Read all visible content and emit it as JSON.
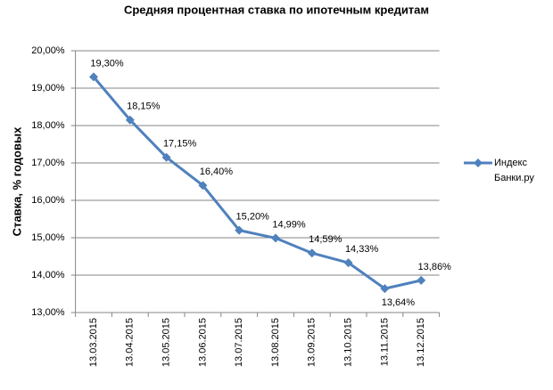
{
  "chart_data": {
    "type": "line",
    "title": "Средняя процентная ставка по ипотечным кредитам",
    "y_label": "Ставка, % годовых",
    "categories": [
      "13.03.2015",
      "13.04.2015",
      "13.05.2015",
      "13.06.2015",
      "13.07.2015",
      "13.08.2015",
      "13.09.2015",
      "13.10.2015",
      "13.11.2015",
      "13.12.2015"
    ],
    "series": [
      {
        "name": "Индекс Банки.ру",
        "color": "#4f81bd",
        "values": [
          19.3,
          18.15,
          17.15,
          16.4,
          15.2,
          14.99,
          14.59,
          14.33,
          13.64,
          13.86
        ],
        "value_labels": [
          "19,30%",
          "18,15%",
          "17,15%",
          "16,40%",
          "15,20%",
          "14,99%",
          "14,59%",
          "14,33%",
          "13,64%",
          "13,86%"
        ]
      }
    ],
    "ylim": [
      13,
      20
    ],
    "yticks": [
      {
        "value": 13,
        "label": "13,00%"
      },
      {
        "value": 14,
        "label": "14,00%"
      },
      {
        "value": 15,
        "label": "15,00%"
      },
      {
        "value": 16,
        "label": "16,00%"
      },
      {
        "value": 17,
        "label": "17,00%"
      },
      {
        "value": 18,
        "label": "18,00%"
      },
      {
        "value": 19,
        "label": "19,00%"
      },
      {
        "value": 20,
        "label": "20,00%"
      }
    ],
    "grid": true,
    "legend": "right"
  }
}
